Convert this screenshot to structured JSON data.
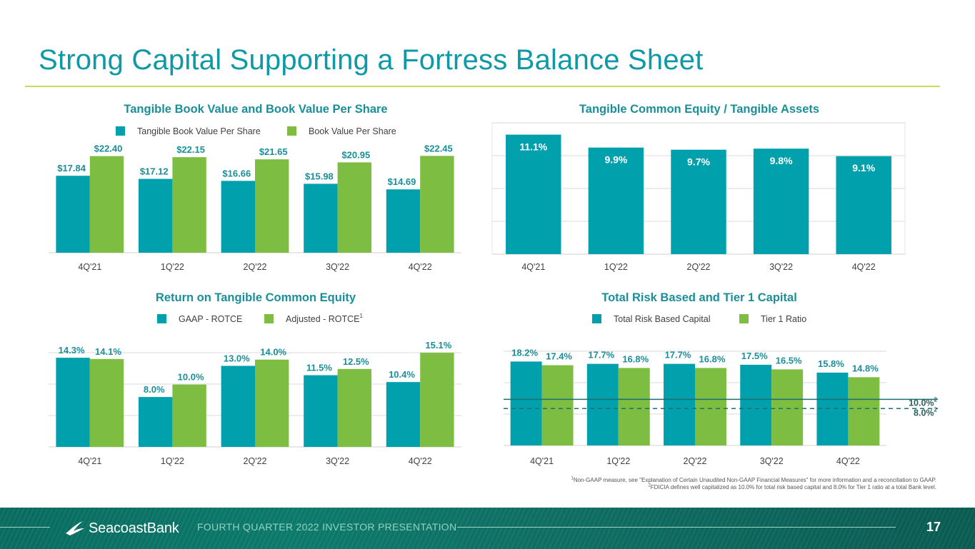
{
  "page": {
    "title": "Strong Capital Supporting a Fortress Balance Sheet",
    "footer_caption": "FOURTH QUARTER 2022 INVESTOR PRESENTATION",
    "page_number": "17",
    "logo_text": "SeacoastBank",
    "footnote1_mark": "1",
    "footnote1": "Non-GAAP measure, see \"Explanation of Certain Unaudited Non-GAAP Financial Measures\" for more information and a reconciliation to GAAP.",
    "footnote2_mark": "2",
    "footnote2": "FDICIA defines well capitalized as 10.0% for total risk based capital and 8.0% for Tier 1 ratio at a total Bank level."
  },
  "colors": {
    "teal": "#00a0ad",
    "green": "#7dbe42",
    "title": "#0d9aa6",
    "label": "#1a8f9a",
    "grid": "#d9d9d9",
    "threshold": "#1a6f6f"
  },
  "chart_data": [
    {
      "id": "tbv",
      "type": "bar",
      "title": "Tangible Book Value and Book Value Per Share",
      "categories": [
        "4Q'21",
        "1Q'22",
        "2Q'22",
        "3Q'22",
        "4Q'22"
      ],
      "series": [
        {
          "name": "Tangible Book Value Per Share",
          "color": "teal",
          "values": [
            17.84,
            17.12,
            16.66,
            15.98,
            14.69
          ],
          "labels": [
            "$17.84",
            "$17.12",
            "$16.66",
            "$15.98",
            "$14.69"
          ]
        },
        {
          "name": "Book Value Per Share",
          "color": "green",
          "values": [
            22.4,
            22.15,
            21.65,
            20.95,
            22.45
          ],
          "labels": [
            "$22.40",
            "$22.15",
            "$21.65",
            "$20.95",
            "$22.45"
          ]
        }
      ],
      "ylim": [
        0,
        23.5
      ],
      "legend": "top",
      "legend_super": [
        "",
        ""
      ]
    },
    {
      "id": "tce",
      "type": "bar",
      "title": "Tangible Common Equity / Tangible Assets",
      "categories": [
        "4Q'21",
        "1Q'22",
        "2Q'22",
        "3Q'22",
        "4Q'22"
      ],
      "series": [
        {
          "name": "TCE / TA",
          "color": "teal",
          "values": [
            11.1,
            9.9,
            9.7,
            9.8,
            9.1
          ],
          "labels": [
            "11.1%",
            "9.9%",
            "9.7%",
            "9.8%",
            "9.1%"
          ]
        }
      ],
      "ylim": [
        0,
        12.2
      ],
      "legend": "none",
      "gridlines": 4,
      "labels_inside": true
    },
    {
      "id": "rotce",
      "type": "bar",
      "title": "Return on Tangible Common Equity",
      "categories": [
        "4Q'21",
        "1Q'22",
        "2Q'22",
        "3Q'22",
        "4Q'22"
      ],
      "series": [
        {
          "name": "GAAP - ROTCE",
          "color": "teal",
          "values": [
            14.3,
            8.0,
            13.0,
            11.5,
            10.4
          ],
          "labels": [
            "14.3%",
            "8.0%",
            "13.0%",
            "11.5%",
            "10.4%"
          ]
        },
        {
          "name": "Adjusted - ROTCE",
          "color": "green",
          "values": [
            14.1,
            10.0,
            14.0,
            12.5,
            15.1
          ],
          "labels": [
            "14.1%",
            "10.0%",
            "14.0%",
            "12.5%",
            "15.1%"
          ]
        }
      ],
      "ylim": [
        0,
        15.8
      ],
      "legend": "top",
      "legend_super": [
        "",
        "1"
      ],
      "gridlines": 3
    },
    {
      "id": "capital",
      "type": "bar",
      "title": "Total Risk Based and Tier 1 Capital",
      "categories": [
        "4Q'21",
        "1Q'22",
        "2Q'22",
        "3Q'22",
        "4Q'22"
      ],
      "series": [
        {
          "name": "Total Risk Based Capital",
          "color": "teal",
          "values": [
            18.2,
            17.7,
            17.7,
            17.5,
            15.8
          ],
          "labels": [
            "18.2%",
            "17.7%",
            "17.7%",
            "17.5%",
            "15.8%"
          ]
        },
        {
          "name": "Tier 1 Ratio",
          "color": "green",
          "values": [
            17.4,
            16.8,
            16.8,
            16.5,
            14.8
          ],
          "labels": [
            "17.4%",
            "16.8%",
            "16.8%",
            "16.5%",
            "14.8%"
          ]
        }
      ],
      "ylim": [
        0,
        19.5
      ],
      "legend": "top",
      "legend_super": [
        "",
        ""
      ],
      "gridlines": 3,
      "thresholds": [
        {
          "value": 10.0,
          "label": "10.0%",
          "super": "2",
          "style": "solid"
        },
        {
          "value": 8.0,
          "label": "8.0%",
          "super": "2",
          "style": "dashed"
        }
      ]
    }
  ]
}
